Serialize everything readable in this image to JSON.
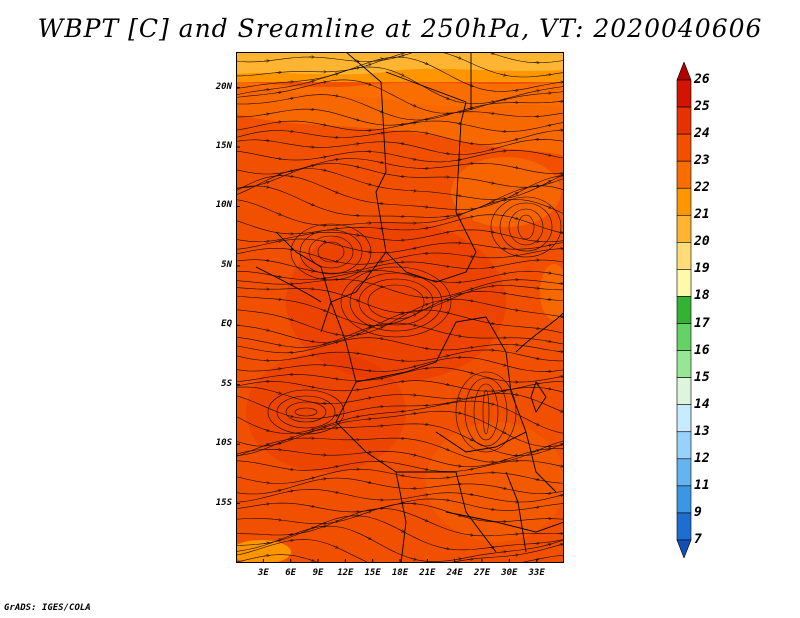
{
  "title": "WBPT [C] and Sreamline at 250hPa, VT: 2020040606",
  "credit": "GrADS: IGES/COLA",
  "map": {
    "lon_range": [
      0,
      36
    ],
    "lat_range": [
      -20,
      23
    ],
    "lat_ticks": [
      {
        "value": 20,
        "label": "20N"
      },
      {
        "value": 15,
        "label": "15N"
      },
      {
        "value": 10,
        "label": "10N"
      },
      {
        "value": 5,
        "label": "5N"
      },
      {
        "value": 0,
        "label": "EQ"
      },
      {
        "value": -5,
        "label": "5S"
      },
      {
        "value": -10,
        "label": "10S"
      },
      {
        "value": -15,
        "label": "15S"
      }
    ],
    "lon_ticks": [
      {
        "value": 3,
        "label": "3E"
      },
      {
        "value": 6,
        "label": "6E"
      },
      {
        "value": 9,
        "label": "9E"
      },
      {
        "value": 12,
        "label": "12E"
      },
      {
        "value": 15,
        "label": "15E"
      },
      {
        "value": 18,
        "label": "18E"
      },
      {
        "value": 21,
        "label": "21E"
      },
      {
        "value": 24,
        "label": "24E"
      },
      {
        "value": 27,
        "label": "27E"
      },
      {
        "value": 30,
        "label": "30E"
      },
      {
        "value": 33,
        "label": "33E"
      }
    ]
  },
  "colorbar": {
    "labels": [
      "26",
      "25",
      "24",
      "23",
      "22",
      "21",
      "20",
      "19",
      "18",
      "17",
      "16",
      "15",
      "14",
      "13",
      "12",
      "11",
      "9",
      "7"
    ],
    "colors": [
      "#b40000",
      "#d21400",
      "#e63200",
      "#f05000",
      "#fa6e00",
      "#ff9600",
      "#ffb432",
      "#ffdc78",
      "#fffaaa",
      "#32b432",
      "#64d264",
      "#96e696",
      "#dcf5dc",
      "#c8ebff",
      "#96d2fa",
      "#64b4f0",
      "#3c96e6",
      "#1e6ed2",
      "#1450b4"
    ]
  }
}
